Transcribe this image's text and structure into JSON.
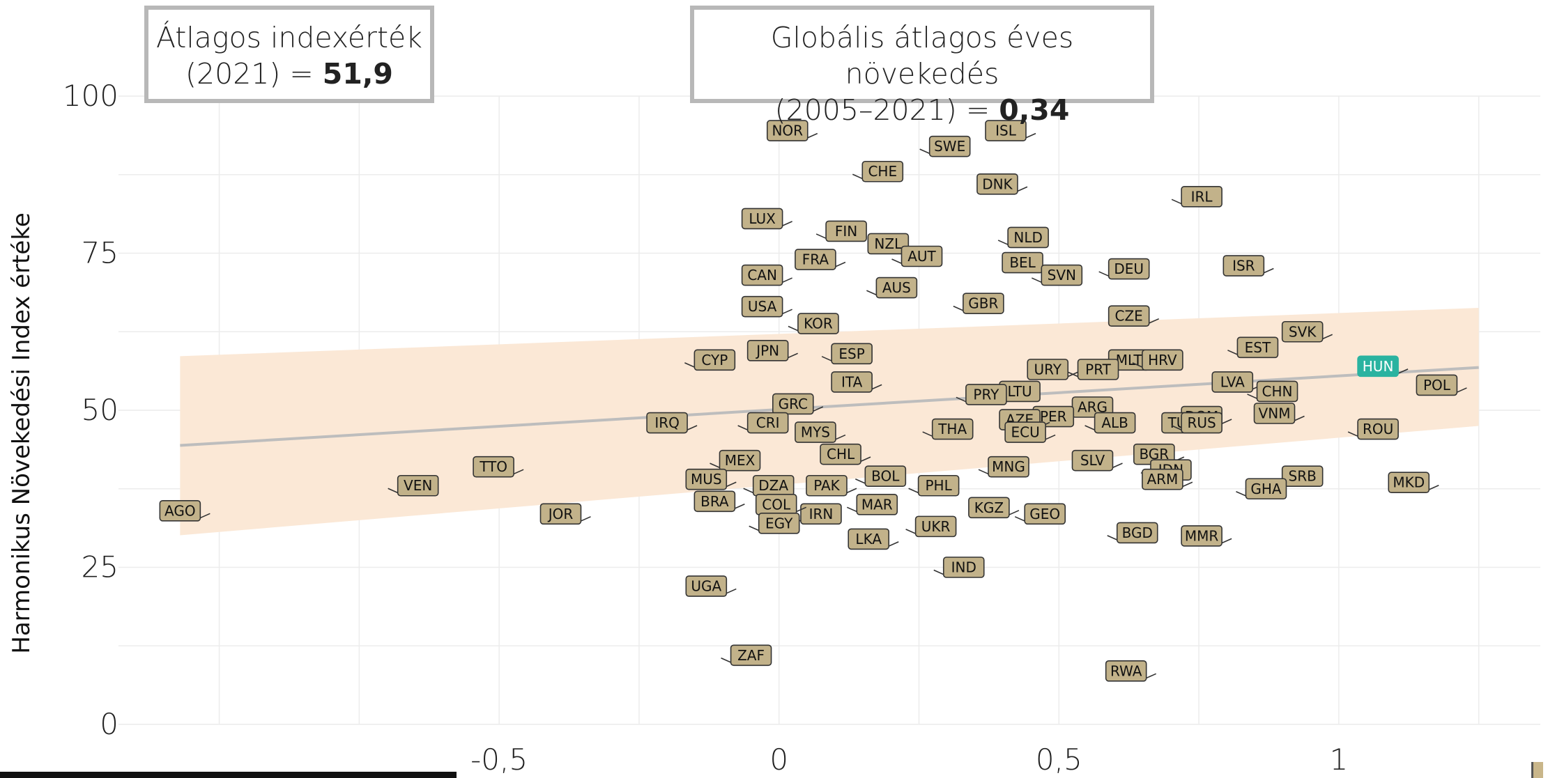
{
  "boxes": {
    "avg_index_line1": "Átlagos indexérték",
    "avg_index_prefix": "(2021) = ",
    "avg_index_value": "51,9",
    "growth_line1": "Globális átlagos éves növekedés",
    "growth_prefix": "(2005–2021) = ",
    "growth_value": "0,34"
  },
  "colors": {
    "label_fill": "#c2b28a",
    "label_border": "#333333",
    "highlight_fill": "#2ab3a0",
    "trend_line": "#bdbdbd",
    "confidence_band": "#fbe8d6",
    "grid": "#ececec"
  },
  "chart_data": {
    "type": "scatter",
    "title": "",
    "xlabel": "",
    "ylabel": "Harmonikus Növekedési Index értéke",
    "xlim": [
      -1.18,
      1.36
    ],
    "ylim": [
      0,
      100
    ],
    "x_ticks": [
      -0.5,
      0,
      0.5,
      1
    ],
    "x_tick_labels": [
      "-0,5",
      "0",
      "0,5",
      "1"
    ],
    "y_ticks": [
      0,
      25,
      50,
      75,
      100
    ],
    "y_tick_labels": [
      "0",
      "25",
      "50",
      "75",
      "100"
    ],
    "grid": true,
    "highlight": "HUN",
    "trend": {
      "x": [
        -1.07,
        1.25
      ],
      "y": [
        44.4,
        56.8
      ]
    },
    "band": {
      "x": [
        -1.07,
        1.25
      ],
      "upper": [
        58.6,
        66.3
      ],
      "lower": [
        30.1,
        47.5
      ]
    },
    "points": [
      {
        "code": "NOR",
        "x": 0.015,
        "y": 94.5
      },
      {
        "code": "SWE",
        "x": 0.305,
        "y": 92.0
      },
      {
        "code": "ISL",
        "x": 0.405,
        "y": 94.5
      },
      {
        "code": "CHE",
        "x": 0.185,
        "y": 88.0
      },
      {
        "code": "DNK",
        "x": 0.39,
        "y": 86.0
      },
      {
        "code": "IRL",
        "x": 0.755,
        "y": 84.0
      },
      {
        "code": "LUX",
        "x": -0.03,
        "y": 80.5
      },
      {
        "code": "FIN",
        "x": 0.12,
        "y": 78.5
      },
      {
        "code": "NZL",
        "x": 0.195,
        "y": 76.5
      },
      {
        "code": "NLD",
        "x": 0.445,
        "y": 77.5
      },
      {
        "code": "FRA",
        "x": 0.065,
        "y": 74.0
      },
      {
        "code": "AUT",
        "x": 0.255,
        "y": 74.5
      },
      {
        "code": "BEL",
        "x": 0.435,
        "y": 73.5
      },
      {
        "code": "DEU",
        "x": 0.625,
        "y": 72.5
      },
      {
        "code": "ISR",
        "x": 0.83,
        "y": 73.0
      },
      {
        "code": "SVN",
        "x": 0.505,
        "y": 71.5
      },
      {
        "code": "CAN",
        "x": -0.03,
        "y": 71.5
      },
      {
        "code": "AUS",
        "x": 0.21,
        "y": 69.5
      },
      {
        "code": "USA",
        "x": -0.03,
        "y": 66.5
      },
      {
        "code": "GBR",
        "x": 0.365,
        "y": 67.0
      },
      {
        "code": "CZE",
        "x": 0.625,
        "y": 65.0
      },
      {
        "code": "KOR",
        "x": 0.07,
        "y": 63.8
      },
      {
        "code": "SVK",
        "x": 0.935,
        "y": 62.5
      },
      {
        "code": "EST",
        "x": 0.855,
        "y": 60.0
      },
      {
        "code": "MLT",
        "x": 0.625,
        "y": 58.0
      },
      {
        "code": "ESP",
        "x": 0.13,
        "y": 59.0
      },
      {
        "code": "JPN",
        "x": -0.02,
        "y": 59.5
      },
      {
        "code": "CYP",
        "x": -0.115,
        "y": 58.0
      },
      {
        "code": "HUN",
        "x": 1.07,
        "y": 57.0
      },
      {
        "code": "HRV",
        "x": 0.685,
        "y": 58.0
      },
      {
        "code": "URY",
        "x": 0.48,
        "y": 56.5
      },
      {
        "code": "PRT",
        "x": 0.57,
        "y": 56.5
      },
      {
        "code": "ITA",
        "x": 0.13,
        "y": 54.5
      },
      {
        "code": "LTU",
        "x": 0.43,
        "y": 53.0
      },
      {
        "code": "LVA",
        "x": 0.81,
        "y": 54.5
      },
      {
        "code": "CHN",
        "x": 0.89,
        "y": 53.0
      },
      {
        "code": "POL",
        "x": 1.175,
        "y": 54.0
      },
      {
        "code": "PRY",
        "x": 0.37,
        "y": 52.5
      },
      {
        "code": "GRC",
        "x": 0.025,
        "y": 51.0
      },
      {
        "code": "ARG",
        "x": 0.56,
        "y": 50.5
      },
      {
        "code": "DOM",
        "x": 0.755,
        "y": 49.0
      },
      {
        "code": "PER",
        "x": 0.49,
        "y": 49.0
      },
      {
        "code": "VNM",
        "x": 0.885,
        "y": 49.5
      },
      {
        "code": "ROU",
        "x": 1.07,
        "y": 47.0
      },
      {
        "code": "IRQ",
        "x": -0.2,
        "y": 48.0
      },
      {
        "code": "CRI",
        "x": -0.02,
        "y": 48.0
      },
      {
        "code": "MYS",
        "x": 0.065,
        "y": 46.5
      },
      {
        "code": "THA",
        "x": 0.31,
        "y": 47.0
      },
      {
        "code": "AZE",
        "x": 0.43,
        "y": 48.5
      },
      {
        "code": "ALB",
        "x": 0.6,
        "y": 48.0
      },
      {
        "code": "TUR",
        "x": 0.72,
        "y": 48.0
      },
      {
        "code": "RUS",
        "x": 0.755,
        "y": 48.0
      },
      {
        "code": "ECU",
        "x": 0.44,
        "y": 46.5
      },
      {
        "code": "MEX",
        "x": -0.07,
        "y": 42.0
      },
      {
        "code": "CHL",
        "x": 0.11,
        "y": 43.0
      },
      {
        "code": "BOL",
        "x": 0.19,
        "y": 39.5
      },
      {
        "code": "BGR",
        "x": 0.67,
        "y": 43.0
      },
      {
        "code": "IDN",
        "x": 0.7,
        "y": 40.5
      },
      {
        "code": "TTO",
        "x": -0.51,
        "y": 41.0
      },
      {
        "code": "MNG",
        "x": 0.41,
        "y": 41.0
      },
      {
        "code": "SLV",
        "x": 0.56,
        "y": 42.0
      },
      {
        "code": "SRB",
        "x": 0.935,
        "y": 39.5
      },
      {
        "code": "MKD",
        "x": 1.125,
        "y": 38.5
      },
      {
        "code": "VEN",
        "x": -0.645,
        "y": 38.0
      },
      {
        "code": "MUS",
        "x": -0.13,
        "y": 39.0
      },
      {
        "code": "DZA",
        "x": -0.01,
        "y": 38.0
      },
      {
        "code": "PAK",
        "x": 0.085,
        "y": 38.0
      },
      {
        "code": "PHL",
        "x": 0.285,
        "y": 38.0
      },
      {
        "code": "ARM",
        "x": 0.685,
        "y": 39.0
      },
      {
        "code": "GHA",
        "x": 0.87,
        "y": 37.5
      },
      {
        "code": "BRA",
        "x": -0.115,
        "y": 35.5
      },
      {
        "code": "MAR",
        "x": 0.175,
        "y": 35.0
      },
      {
        "code": "KGZ",
        "x": 0.375,
        "y": 34.5
      },
      {
        "code": "GEO",
        "x": 0.475,
        "y": 33.5
      },
      {
        "code": "JOR",
        "x": -0.39,
        "y": 33.5
      },
      {
        "code": "IRN",
        "x": 0.075,
        "y": 33.5
      },
      {
        "code": "COL",
        "x": -0.005,
        "y": 35.0
      },
      {
        "code": "EGY",
        "x": 0.0,
        "y": 32.0
      },
      {
        "code": "AGO",
        "x": -1.07,
        "y": 34.0
      },
      {
        "code": "UKR",
        "x": 0.28,
        "y": 31.5
      },
      {
        "code": "LKA",
        "x": 0.16,
        "y": 29.5
      },
      {
        "code": "BGD",
        "x": 0.64,
        "y": 30.5
      },
      {
        "code": "MMR",
        "x": 0.755,
        "y": 30.0
      },
      {
        "code": "IND",
        "x": 0.33,
        "y": 25.0
      },
      {
        "code": "UGA",
        "x": -0.13,
        "y": 22.0
      },
      {
        "code": "ZAF",
        "x": -0.05,
        "y": 11.0
      },
      {
        "code": "RWA",
        "x": 0.62,
        "y": 8.5
      }
    ]
  }
}
